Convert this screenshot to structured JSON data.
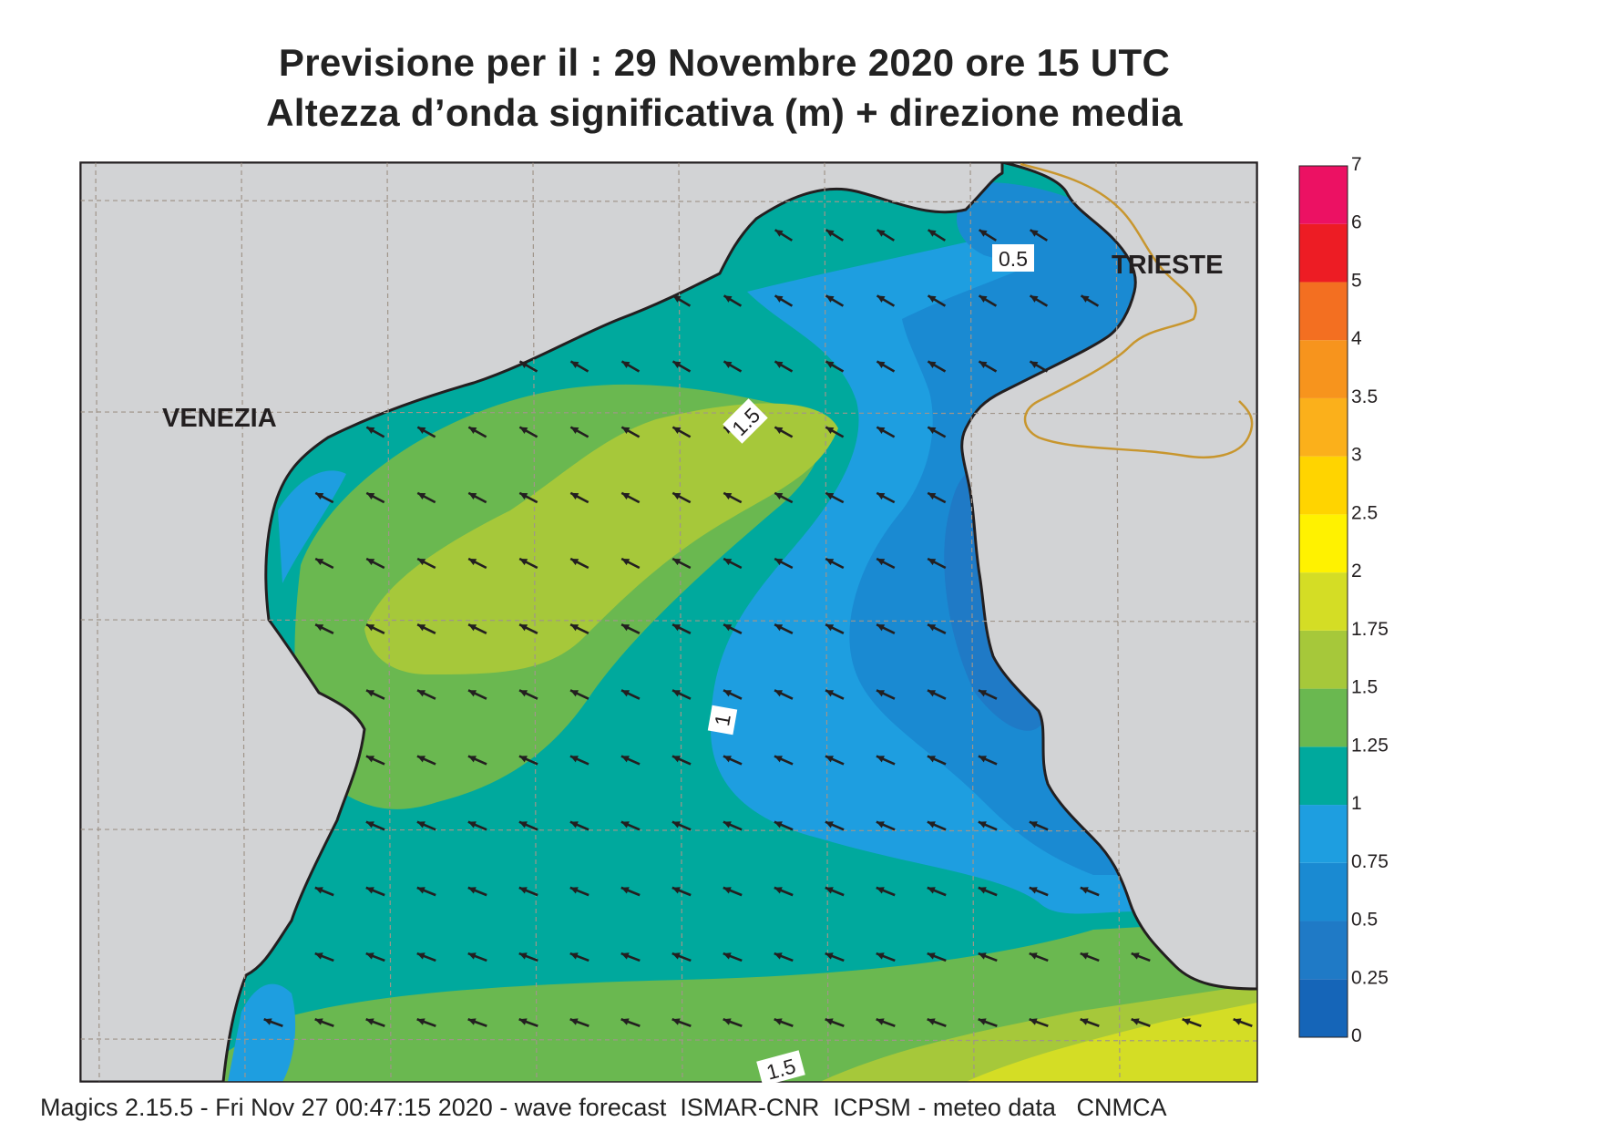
{
  "title": {
    "line1": "Previsione per il  :  29 Novembre  2020   ore 15 UTC",
    "line2": "Altezza d’onda significativa (m) + direzione media"
  },
  "places": {
    "venezia": "VENEZIA",
    "trieste": "TRIESTE"
  },
  "contour_labels": {
    "upper_1_5": "1.5",
    "north_0_5": "0.5",
    "center_1": "1",
    "bottom_1_5": "1.5"
  },
  "legend": {
    "bands": [
      {
        "from": 0,
        "to": 0.25,
        "color": "#1565b8"
      },
      {
        "from": 0.25,
        "to": 0.5,
        "color": "#1f7ac6"
      },
      {
        "from": 0.5,
        "to": 0.75,
        "color": "#1a8ad2"
      },
      {
        "from": 0.75,
        "to": 1,
        "color": "#1e9ee0"
      },
      {
        "from": 1,
        "to": 1.25,
        "color": "#00a99d"
      },
      {
        "from": 1.25,
        "to": 1.5,
        "color": "#6ab850"
      },
      {
        "from": 1.5,
        "to": 1.75,
        "color": "#a6c83a"
      },
      {
        "from": 1.75,
        "to": 2,
        "color": "#d4dd25"
      },
      {
        "from": 2,
        "to": 2.5,
        "color": "#fff200"
      },
      {
        "from": 2.5,
        "to": 3,
        "color": "#ffd400"
      },
      {
        "from": 3,
        "to": 3.5,
        "color": "#fbb01b"
      },
      {
        "from": 3.5,
        "to": 4,
        "color": "#f7941d"
      },
      {
        "from": 4,
        "to": 5,
        "color": "#f36f21"
      },
      {
        "from": 5,
        "to": 6,
        "color": "#ed1c24"
      },
      {
        "from": 6,
        "to": 7,
        "color": "#ec1163"
      }
    ],
    "tick_labels": [
      "0",
      "0.25",
      "0.5",
      "0.75",
      "1",
      "1.25",
      "1.5",
      "1.75",
      "2",
      "2.5",
      "3",
      "3.5",
      "4",
      "5",
      "6",
      "7"
    ]
  },
  "colors": {
    "land": "#d2d3d5",
    "coast": "#231f20",
    "grid": "#a0958a",
    "border": "#c8962e",
    "arrow": "#231f20"
  },
  "footer": "Magics 2.15.5 - Fri Nov 27 00:47:15 2020 - wave forecast  ISMAR-CNR  ICPSM - meteo data   CNMCA"
}
